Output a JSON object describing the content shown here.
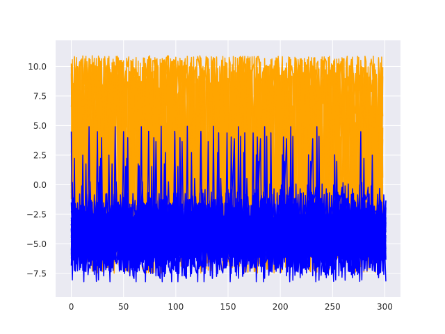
{
  "chart_data": {
    "type": "line",
    "title": "",
    "xlabel": "",
    "ylabel": "",
    "xlim": [
      -15,
      315
    ],
    "ylim": [
      -9.5,
      12.2
    ],
    "x_ticks": [
      0,
      50,
      100,
      150,
      200,
      250,
      300
    ],
    "x_tick_labels": [
      "0",
      "50",
      "100",
      "150",
      "200",
      "250",
      "300"
    ],
    "y_ticks": [
      -7.5,
      -5.0,
      -2.5,
      0.0,
      2.5,
      5.0,
      7.5,
      10.0
    ],
    "y_tick_labels": [
      "−7.5",
      "−5.0",
      "−2.5",
      "0.0",
      "2.5",
      "5.0",
      "7.5",
      "10.0"
    ],
    "grid": true,
    "legend": "none",
    "background_color": "#eaeaf2",
    "grid_color": "#ffffff",
    "series": [
      {
        "color": "#ffa500",
        "x_range": [
          0,
          298
        ],
        "y_range": [
          -8.3,
          11.3
        ],
        "description": "dense overlapping oscillating traces spanning roughly -8 to 11"
      },
      {
        "color": "#0000ff",
        "x_range": [
          0,
          301
        ],
        "y_range": [
          -8.2,
          5.4
        ],
        "description": "dense overlapping oscillating traces spanning roughly -8 to 5"
      }
    ]
  }
}
